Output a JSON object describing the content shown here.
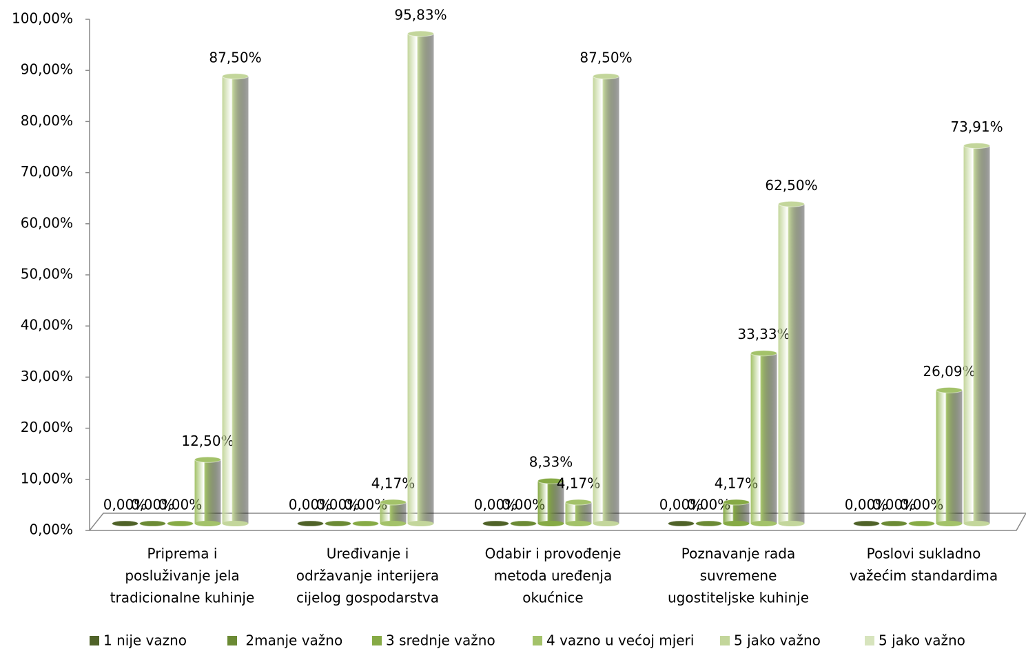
{
  "chart_data": {
    "type": "bar",
    "categories": [
      [
        "Priprema i",
        "posluživanje jela",
        "tradicionalne kuhinje"
      ],
      [
        "Uređivanje i",
        "održavanje interijera",
        "cijelog gospodarstva"
      ],
      [
        "Odabir i provođenje",
        "metoda uređenja",
        "okućnice"
      ],
      [
        "Poznavanje rada",
        "suvremene",
        "ugostiteljske kuhinje"
      ],
      [
        "Poslovi sukladno",
        "važećim standardima"
      ]
    ],
    "series": [
      {
        "name": "1 nije vazno",
        "color": "#4f6228",
        "values": [
          0,
          0,
          0,
          0,
          0
        ],
        "value_labels": [
          "0,00%",
          "0,00%",
          "0,00%",
          "0,00%",
          "0,00%"
        ]
      },
      {
        "name": " 2manje važno",
        "color": "#6b8a34",
        "values": [
          0,
          0,
          0,
          0,
          0
        ],
        "value_labels": [
          "0,00%",
          "0,00%",
          "0,00%",
          "0,00%",
          "0,00%"
        ]
      },
      {
        "name": "3 srednje važno",
        "color": "#86aa45",
        "values": [
          0,
          0,
          8.33,
          4.17,
          0
        ],
        "value_labels": [
          "0,00%",
          "0,00%",
          "8,33%",
          "4,17%",
          "0,00%"
        ]
      },
      {
        "name": "4 vazno u većoj mjeri",
        "color": "#a3c269",
        "values": [
          12.5,
          4.17,
          4.17,
          33.33,
          26.09
        ],
        "value_labels": [
          "12,50%",
          "4,17%",
          "4,17%",
          "33,33%",
          "26,09%"
        ]
      },
      {
        "name": "5 jako važno",
        "color": "#c3d69b",
        "values": [
          87.5,
          95.83,
          87.5,
          62.5,
          73.91
        ],
        "value_labels": [
          "87,50%",
          "95,83%",
          "87,50%",
          "62,50%",
          "73,91%"
        ]
      },
      {
        "name": "5 jako važno",
        "color": "#d7e4bd",
        "values": [
          null,
          null,
          null,
          null,
          null
        ]
      }
    ],
    "ylim": [
      0,
      100
    ],
    "yticks": [
      {
        "value": 0,
        "label": "0,00%"
      },
      {
        "value": 10,
        "label": "10,00%"
      },
      {
        "value": 20,
        "label": "20,00%"
      },
      {
        "value": 30,
        "label": "30,00%"
      },
      {
        "value": 40,
        "label": "40,00%"
      },
      {
        "value": 50,
        "label": "50,00%"
      },
      {
        "value": 60,
        "label": "60,00%"
      },
      {
        "value": 70,
        "label": "70,00%"
      },
      {
        "value": 80,
        "label": "80,00%"
      },
      {
        "value": 90,
        "label": "90,00%"
      },
      {
        "value": 100,
        "label": "100,00%"
      }
    ],
    "grid": false,
    "legend": "bottom"
  }
}
